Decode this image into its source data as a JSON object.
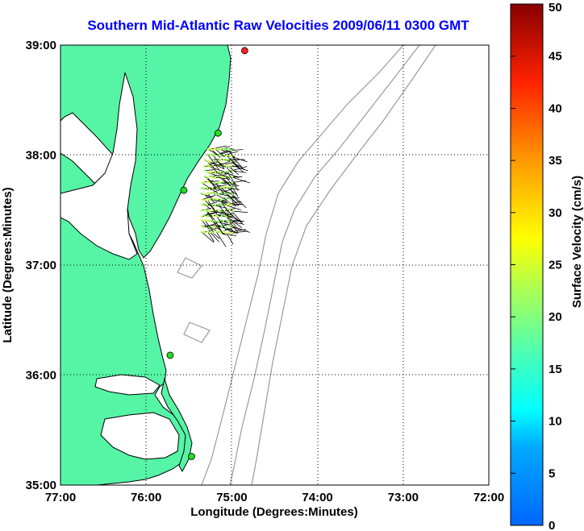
{
  "title": "Southern Mid-Atlantic Raw Velocities 2009/06/11 0300 GMT",
  "xlabel": "Longitude (Degrees:Minutes)",
  "ylabel": "Latitude (Degrees:Minutes)",
  "x_ticks": [
    "77:00",
    "76:00",
    "75:00",
    "74:00",
    "73:00",
    "72:00"
  ],
  "y_ticks": [
    "39:00",
    "38:00",
    "37:00",
    "36:00",
    "35:00"
  ],
  "colorbar": {
    "label": "Surface Velocity (cm/s)",
    "min": 0,
    "max": 50,
    "ticks": [
      "0",
      "5",
      "10",
      "15",
      "20",
      "25",
      "30",
      "35",
      "40",
      "45",
      "50"
    ]
  },
  "colors": {
    "land": "#55f5a5",
    "coastline": "#000000",
    "bathymetry": "#9a9a9a",
    "station_active": "#22dd22",
    "station_inactive": "#ff2020",
    "title": "#0000ff"
  },
  "stations": [
    {
      "lon": -74.85,
      "lat": 38.95,
      "status": "inactive"
    },
    {
      "lon": -75.16,
      "lat": 38.2,
      "status": "active"
    },
    {
      "lon": -75.56,
      "lat": 37.68,
      "status": "active"
    },
    {
      "lon": -75.72,
      "lat": 36.18,
      "status": "active"
    },
    {
      "lon": -75.47,
      "lat": 35.26,
      "status": "active"
    }
  ]
}
